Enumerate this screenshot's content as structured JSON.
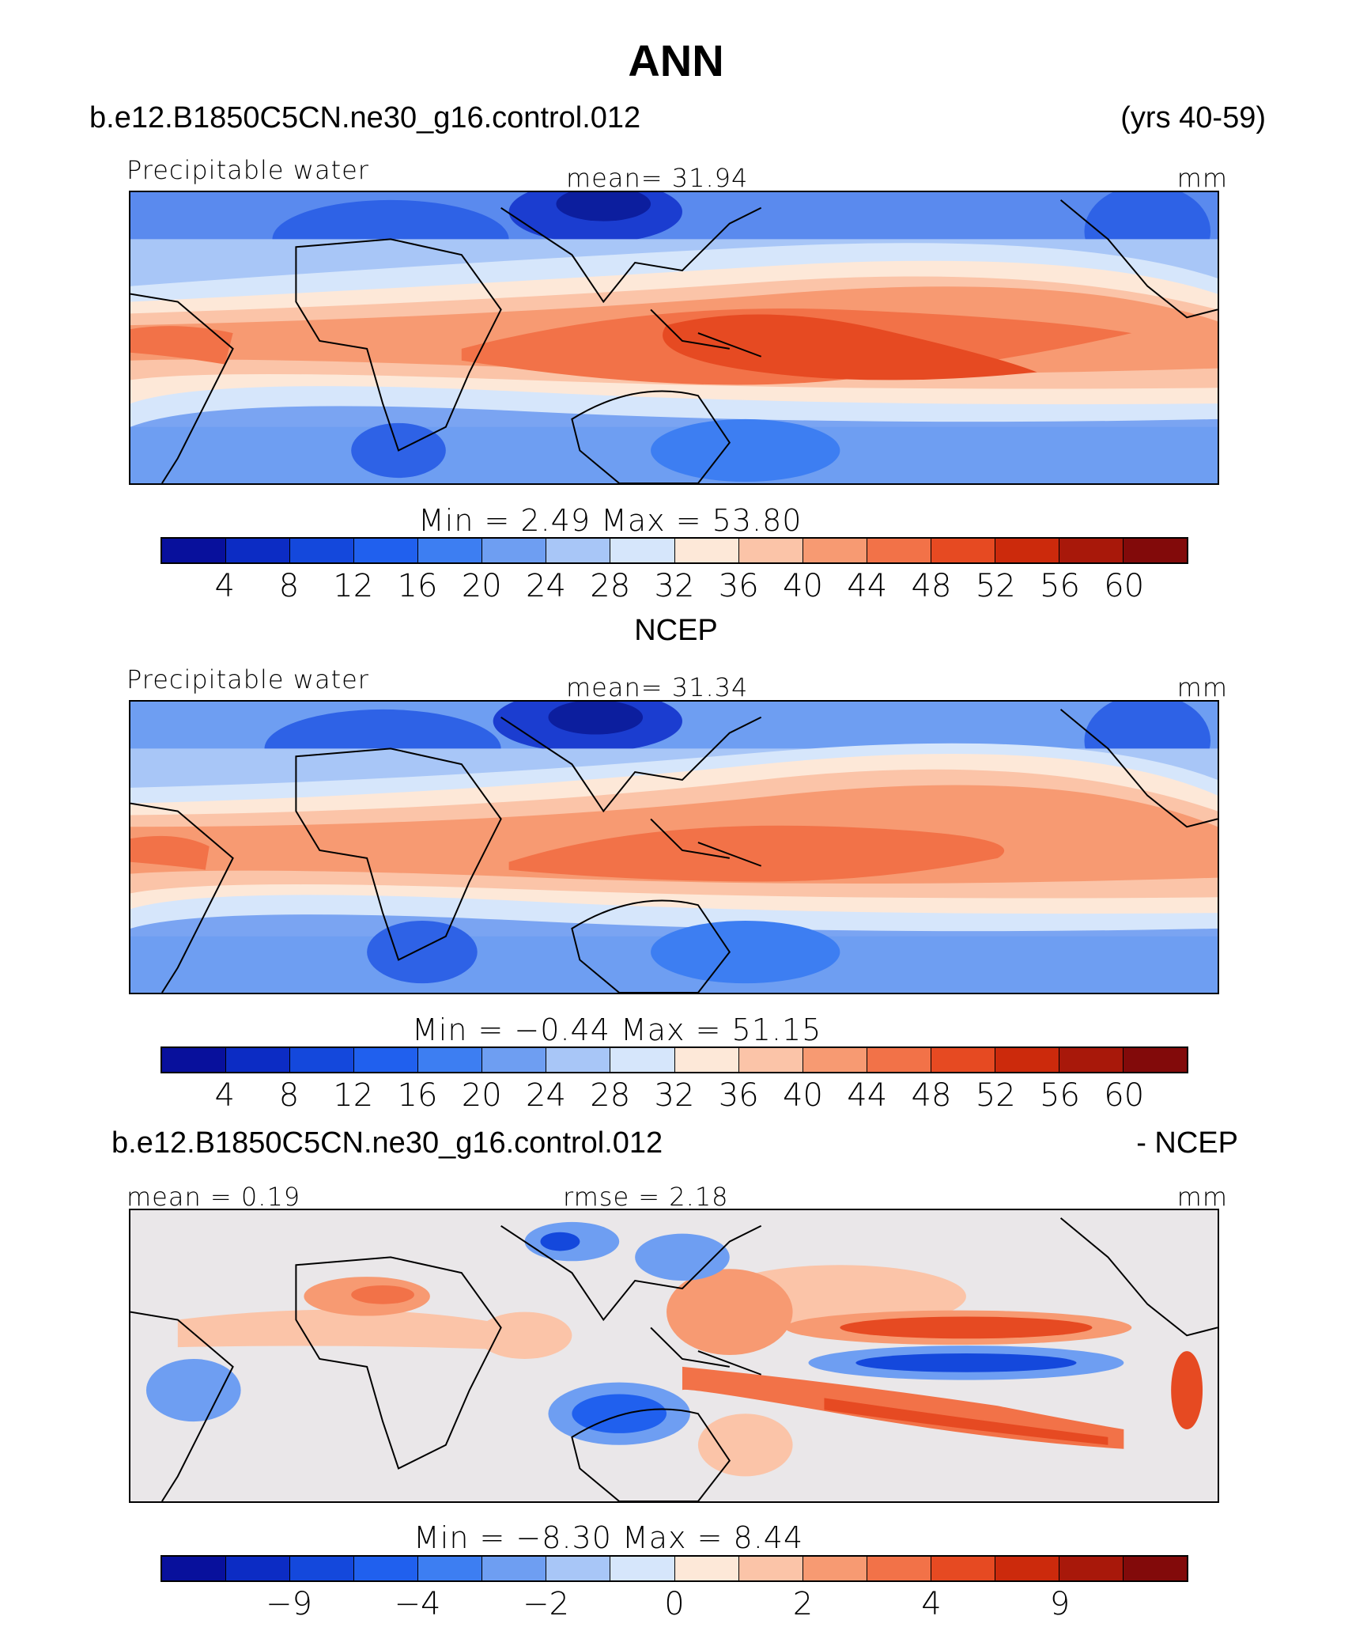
{
  "title": "ANN",
  "header": {
    "case": "b.e12.B1850C5CN.ne30_g16.control.012",
    "years": "(yrs 40-59)"
  },
  "panels": [
    {
      "variable": "Precipitable water",
      "mean": "mean=  31.94",
      "units": "mm",
      "minmax": "Min  =     2.49  Max  =   53.80",
      "ticks": [
        "4",
        "8",
        "12",
        "16",
        "20",
        "24",
        "28",
        "32",
        "36",
        "40",
        "44",
        "48",
        "52",
        "56",
        "60"
      ]
    },
    {
      "heading": "NCEP",
      "variable": "Precipitable water",
      "mean": "mean=  31.34",
      "units": "mm",
      "minmax": "Min  =   −0.44  Max  =   51.15",
      "ticks": [
        "4",
        "8",
        "12",
        "16",
        "20",
        "24",
        "28",
        "32",
        "36",
        "40",
        "44",
        "48",
        "52",
        "56",
        "60"
      ]
    },
    {
      "heading_left": "b.e12.B1850C5CN.ne30_g16.control.012",
      "heading_right": "- NCEP",
      "mean": "mean  =    0.19",
      "rmse": "rmse  =    2.18",
      "units": "mm",
      "minmax": "Min  =   −8.30  Max  =    8.44",
      "ticks": [
        "−9",
        "−4",
        "−2",
        "0",
        "2",
        "4",
        "9"
      ]
    }
  ],
  "colors": {
    "colorbar": [
      "#08109c",
      "#0c2cc4",
      "#1448dc",
      "#2060ee",
      "#3d7ef2",
      "#6e9ef2",
      "#a8c6f7",
      "#d6e6fb",
      "#fde8d8",
      "#fbc4a8",
      "#f79a72",
      "#f27248",
      "#e64a22",
      "#cc2a0c",
      "#a8180a",
      "#820a0a"
    ],
    "land_outline": "#000000"
  }
}
